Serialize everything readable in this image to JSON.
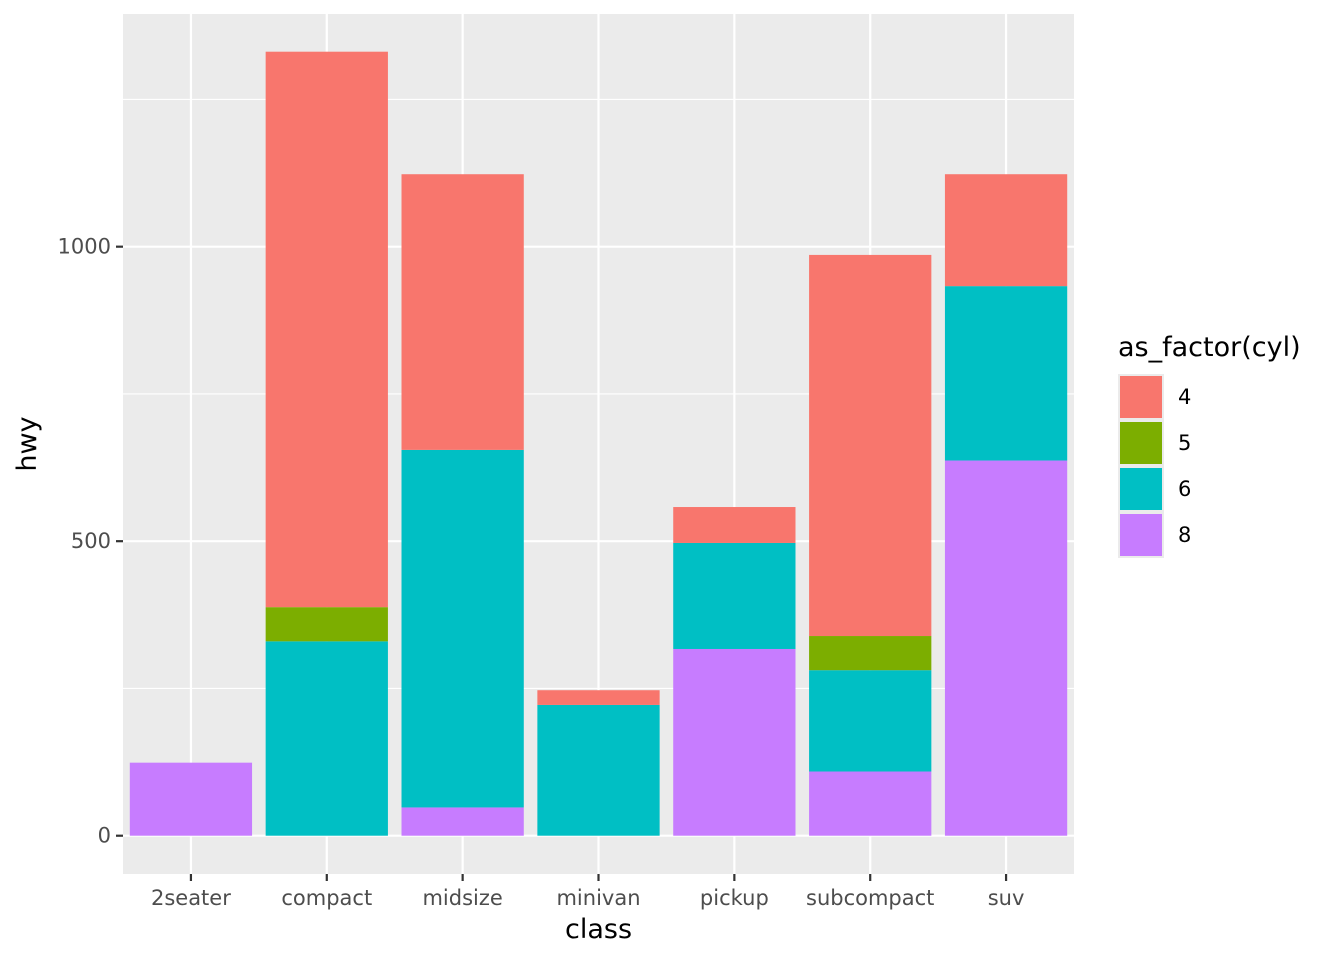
{
  "chart_data": {
    "type": "bar",
    "stacked": true,
    "categories": [
      "2seater",
      "compact",
      "midsize",
      "minivan",
      "pickup",
      "subcompact",
      "suv"
    ],
    "xlabel": "class",
    "ylabel": "hwy",
    "ylim": [
      -65,
      1395
    ],
    "y_ticks": [
      0,
      500,
      1000
    ],
    "y_tick_labels": [
      "0",
      "500",
      "1000"
    ],
    "grid": true,
    "legend": {
      "title": "as_factor(cyl)",
      "position": "right",
      "entries": [
        {
          "label": "4",
          "color": "#F8766D"
        },
        {
          "label": "5",
          "color": "#7CAE00"
        },
        {
          "label": "6",
          "color": "#00BFC4"
        },
        {
          "label": "8",
          "color": "#C77CFF"
        }
      ]
    },
    "series": [
      {
        "name": "8",
        "color": "#C77CFF",
        "values": [
          124,
          0,
          48,
          0,
          317,
          109,
          637
        ]
      },
      {
        "name": "6",
        "color": "#00BFC4",
        "values": [
          0,
          330,
          607,
          222,
          180,
          172,
          296
        ]
      },
      {
        "name": "5",
        "color": "#7CAE00",
        "values": [
          0,
          58,
          0,
          0,
          0,
          58,
          0
        ]
      },
      {
        "name": "4",
        "color": "#F8766D",
        "values": [
          0,
          943,
          468,
          25,
          61,
          647,
          190
        ]
      }
    ],
    "panel_background": "#EBEBEB",
    "grid_color": "#FFFFFF"
  }
}
